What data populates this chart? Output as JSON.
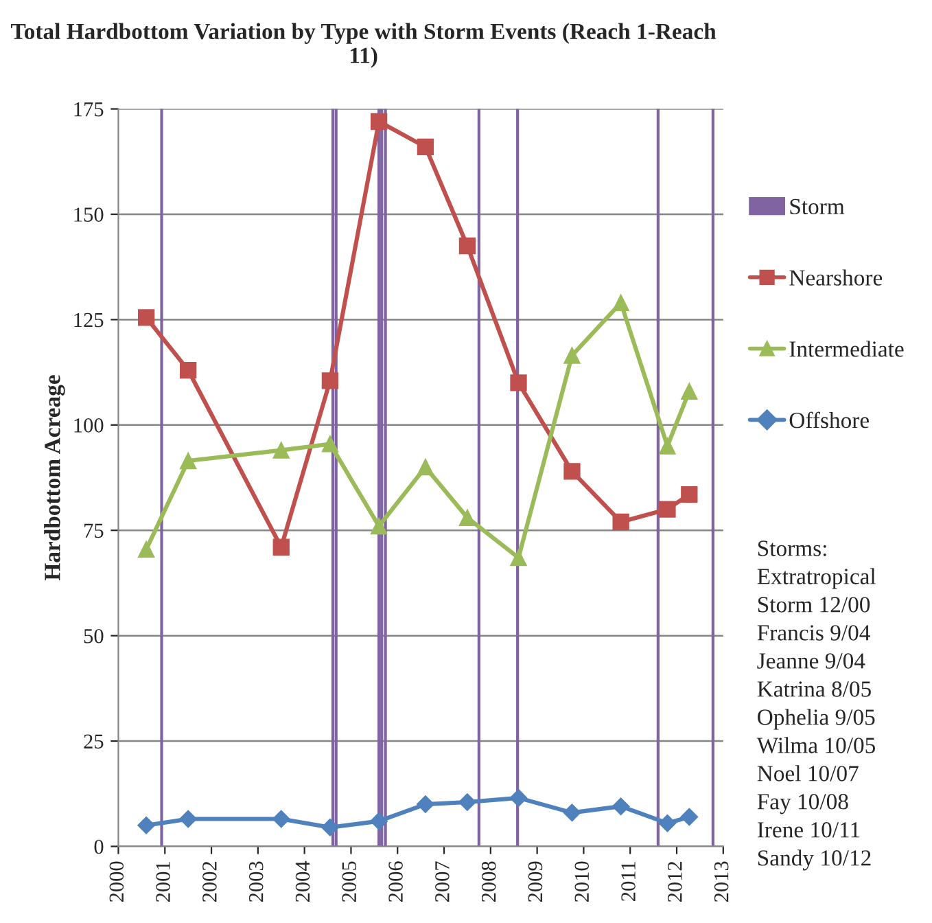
{
  "chart_data": {
    "type": "line",
    "title": "Total Hardbottom Variation by Type with Storm Events (Reach 1-Reach 11)",
    "ylabel": "Hardbottom Acreage",
    "xlim": [
      2000,
      2013
    ],
    "xticks": [
      2000,
      2001,
      2002,
      2003,
      2004,
      2005,
      2006,
      2007,
      2008,
      2009,
      2010,
      2011,
      2012,
      2013
    ],
    "ylim": [
      0,
      175
    ],
    "yticks": [
      0,
      25,
      50,
      75,
      100,
      125,
      150,
      175
    ],
    "grid": "y",
    "legend": "right",
    "series": [
      {
        "name": "Storm",
        "type": "bar",
        "color": "#8064a2",
        "x": [
          2000.93,
          2004.61,
          2004.68,
          2005.6,
          2005.66,
          2005.74,
          2007.75,
          2008.58,
          2011.6,
          2012.78
        ],
        "values": [
          175,
          175,
          175,
          175,
          175,
          175,
          175,
          175,
          175,
          175
        ]
      },
      {
        "name": "Nearshore",
        "marker": "square",
        "color": "#c0504d",
        "x": [
          2000.6,
          2001.5,
          2003.5,
          2004.55,
          2005.6,
          2006.6,
          2007.5,
          2008.6,
          2009.75,
          2010.8,
          2011.8,
          2012.27
        ],
        "values": [
          125.5,
          113,
          71,
          110.5,
          172,
          166,
          142.5,
          110,
          89,
          77,
          80,
          83.5
        ]
      },
      {
        "name": "Intermediate",
        "marker": "triangle",
        "color": "#9bbb59",
        "x": [
          2000.6,
          2001.5,
          2003.5,
          2004.55,
          2005.6,
          2006.6,
          2007.5,
          2008.6,
          2009.75,
          2010.8,
          2011.8,
          2012.27
        ],
        "values": [
          70.5,
          91.5,
          94,
          95.5,
          76,
          90,
          78,
          68.5,
          116.5,
          129,
          95,
          108
        ]
      },
      {
        "name": "Offshore",
        "marker": "diamond",
        "color": "#4f81bd",
        "x": [
          2000.6,
          2001.5,
          2003.5,
          2004.55,
          2005.6,
          2006.6,
          2007.5,
          2008.6,
          2009.75,
          2010.8,
          2011.8,
          2012.27
        ],
        "values": [
          5,
          6.5,
          6.5,
          4.5,
          6,
          10,
          10.5,
          11.5,
          8,
          9.5,
          5.5,
          7
        ]
      }
    ],
    "annotations": [
      "Storms:",
      "Extratropical",
      "Storm 12/00",
      "Francis 9/04",
      "Jeanne 9/04",
      "Katrina 8/05",
      "Ophelia 9/05",
      "Wilma 10/05",
      "Noel 10/07",
      "Fay 10/08",
      "Irene 10/11",
      "Sandy 10/12"
    ]
  }
}
